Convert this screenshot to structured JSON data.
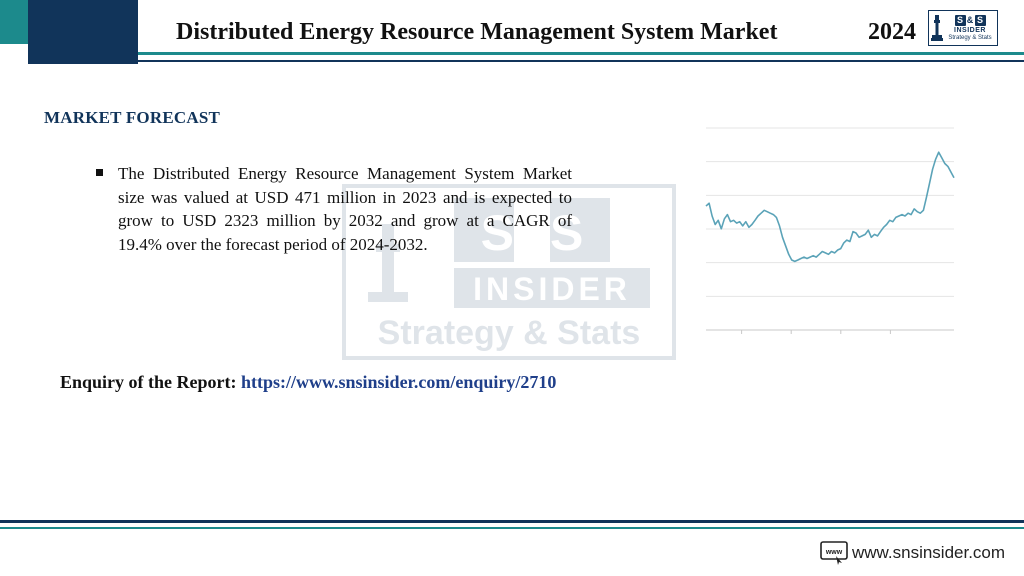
{
  "header": {
    "title": "Distributed Energy Resource Management System Market",
    "year": "2024"
  },
  "logo": {
    "letters": [
      "S",
      "&",
      "S"
    ],
    "name": "INSIDER",
    "tagline": "Strategy & Stats"
  },
  "watermark": {
    "letters": "S&S",
    "name": "INSIDER",
    "tagline": "Strategy & Stats"
  },
  "section": {
    "heading": "MARKET FORECAST"
  },
  "bullets": [
    {
      "text": "The Distributed Energy Resource Management System Market size was valued at USD 471 million in 2023 and is expected to grow to USD 2323 million by 2032 and grow at a CAGR of 19.4% over the forecast period of 2024-2032."
    }
  ],
  "enquiry": {
    "label": "Enquiry of the Report:",
    "url": "https://www.snsinsider.com/enquiry/2710"
  },
  "footer": {
    "icon_label": "www",
    "url": "www.snsinsider.com"
  },
  "colors": {
    "teal": "#1c8a8c",
    "navy": "#11345a",
    "line": "#5ba3b8",
    "link": "#1f3f8a"
  },
  "chart_data": {
    "type": "line",
    "title": "",
    "xlabel": "",
    "ylabel": "",
    "grid": true,
    "y_gridlines": 6,
    "x_ticks": 5,
    "series": [
      {
        "values": [
          62,
          64,
          55,
          49,
          52,
          46,
          53,
          56,
          51,
          52,
          50,
          51,
          48,
          51,
          47,
          49,
          52,
          55,
          57,
          59,
          58,
          57,
          56,
          54,
          48,
          40,
          34,
          28,
          24,
          23,
          24,
          25,
          26,
          25,
          26,
          27,
          26,
          28,
          30,
          29,
          28,
          30,
          29,
          31,
          32,
          36,
          38,
          37,
          44,
          43,
          40,
          41,
          42,
          45,
          40,
          42,
          41,
          44,
          47,
          49,
          52,
          51,
          54,
          55,
          56,
          55,
          57,
          56,
          60,
          58,
          57,
          59,
          68,
          78,
          88,
          95,
          100,
          96,
          92,
          90,
          86,
          82
        ]
      }
    ]
  }
}
